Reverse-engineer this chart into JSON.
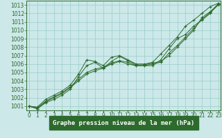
{
  "title": "Graphe pression niveau de la mer (hPa)",
  "xlabel_hours": [
    0,
    1,
    2,
    3,
    4,
    5,
    6,
    7,
    8,
    9,
    10,
    11,
    12,
    13,
    14,
    15,
    16,
    17,
    18,
    19,
    20,
    21,
    22,
    23
  ],
  "ylim": [
    1000.5,
    1013.5
  ],
  "yticks": [
    1001,
    1002,
    1003,
    1004,
    1005,
    1006,
    1007,
    1008,
    1009,
    1010,
    1011,
    1012,
    1013
  ],
  "series": [
    [
      1001.0,
      1000.7,
      1001.5,
      1002.0,
      1002.5,
      1003.2,
      1004.0,
      1004.8,
      1005.2,
      1005.5,
      1006.3,
      1006.9,
      1006.4,
      1005.9,
      1005.9,
      1006.1,
      1006.3,
      1007.0,
      1008.0,
      1009.0,
      1010.0,
      1011.5,
      1012.2,
      1013.1
    ],
    [
      1001.0,
      1000.7,
      1001.4,
      1001.8,
      1002.3,
      1003.0,
      1004.5,
      1005.8,
      1006.2,
      1005.5,
      1006.0,
      1006.3,
      1006.0,
      1005.8,
      1005.8,
      1005.8,
      1006.5,
      1007.8,
      1009.0,
      1009.5,
      1010.5,
      1011.2,
      1012.0,
      1013.2
    ],
    [
      1001.0,
      1000.8,
      1001.6,
      1002.1,
      1002.6,
      1003.3,
      1004.2,
      1005.0,
      1005.4,
      1005.6,
      1006.1,
      1006.4,
      1006.2,
      1005.8,
      1005.8,
      1006.0,
      1006.2,
      1007.3,
      1008.2,
      1009.2,
      1010.2,
      1011.3,
      1012.1,
      1013.0
    ],
    [
      1001.0,
      1000.9,
      1001.8,
      1002.3,
      1002.8,
      1003.5,
      1004.8,
      1006.5,
      1006.3,
      1005.8,
      1006.8,
      1007.0,
      1006.5,
      1006.0,
      1006.0,
      1006.2,
      1007.2,
      1008.2,
      1009.2,
      1010.5,
      1011.2,
      1012.0,
      1012.8,
      1013.2
    ]
  ],
  "line_color": "#2d6a2d",
  "marker_color": "#2d6a2d",
  "bg_color": "#cce8e8",
  "grid_color": "#99cccc",
  "title_bg": "#2d6a2d",
  "title_fg": "#ffffff",
  "title_fontsize": 6.5,
  "axis_fontsize": 5.5
}
